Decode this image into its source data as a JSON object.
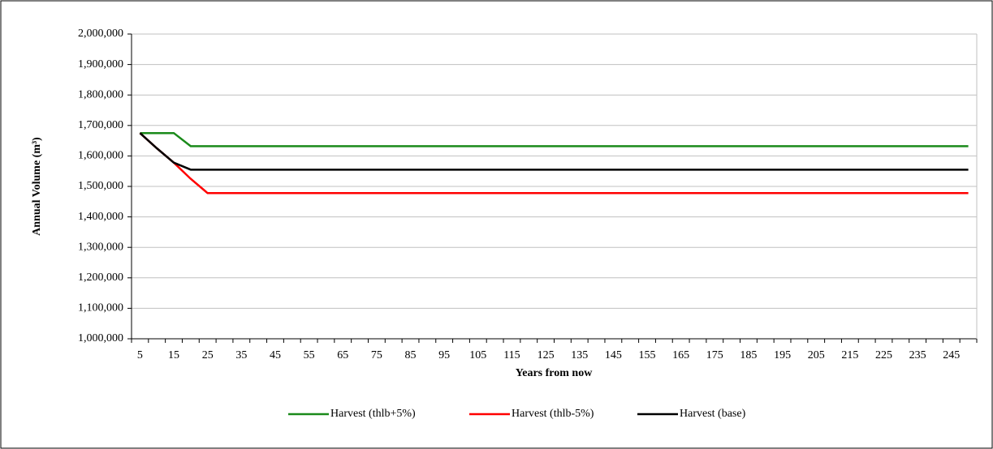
{
  "chart_data": {
    "type": "line",
    "x_label": "Years from now",
    "y_label": "Annual Volume (m³)",
    "categories": [
      5,
      null,
      15,
      null,
      25,
      null,
      35,
      null,
      45,
      null,
      55,
      null,
      65,
      null,
      75,
      null,
      85,
      null,
      95,
      null,
      105,
      null,
      115,
      null,
      125,
      null,
      135,
      null,
      145,
      null,
      155,
      null,
      165,
      null,
      175,
      null,
      185,
      null,
      195,
      null,
      205,
      null,
      215,
      null,
      225,
      null,
      235,
      null,
      245,
      null
    ],
    "ylim": [
      1000000,
      2000000
    ],
    "yticks": [
      {
        "value": 1000000,
        "label": "1,000,000"
      },
      {
        "value": 1100000,
        "label": "1,100,000"
      },
      {
        "value": 1200000,
        "label": "1,200,000"
      },
      {
        "value": 1300000,
        "label": "1,300,000"
      },
      {
        "value": 1400000,
        "label": "1,400,000"
      },
      {
        "value": 1500000,
        "label": "1,500,000"
      },
      {
        "value": 1600000,
        "label": "1,600,000"
      },
      {
        "value": 1700000,
        "label": "1,700,000"
      },
      {
        "value": 1800000,
        "label": "1,800,000"
      },
      {
        "value": 1900000,
        "label": "1,900,000"
      },
      {
        "value": 2000000,
        "label": "2,000,000"
      }
    ],
    "grid": true,
    "legend": "bottom",
    "series": [
      {
        "name": "Harvest (thlb+5%)",
        "color": "#1a8a1a",
        "values": [
          1675000,
          1675000,
          1675000,
          1632000,
          1632000,
          1632000,
          1632000,
          1632000,
          1632000,
          1632000,
          1632000,
          1632000,
          1632000,
          1632000,
          1632000,
          1632000,
          1632000,
          1632000,
          1632000,
          1632000,
          1632000,
          1632000,
          1632000,
          1632000,
          1632000,
          1632000,
          1632000,
          1632000,
          1632000,
          1632000,
          1632000,
          1632000,
          1632000,
          1632000,
          1632000,
          1632000,
          1632000,
          1632000,
          1632000,
          1632000,
          1632000,
          1632000,
          1632000,
          1632000,
          1632000,
          1632000,
          1632000,
          1632000,
          1632000,
          1632000
        ]
      },
      {
        "name": "Harvest (thlb-5%)",
        "color": "#ff0000",
        "values": [
          1675000,
          1625000,
          1578000,
          1525000,
          1478000,
          1478000,
          1478000,
          1478000,
          1478000,
          1478000,
          1478000,
          1478000,
          1478000,
          1478000,
          1478000,
          1478000,
          1478000,
          1478000,
          1478000,
          1478000,
          1478000,
          1478000,
          1478000,
          1478000,
          1478000,
          1478000,
          1478000,
          1478000,
          1478000,
          1478000,
          1478000,
          1478000,
          1478000,
          1478000,
          1478000,
          1478000,
          1478000,
          1478000,
          1478000,
          1478000,
          1478000,
          1478000,
          1478000,
          1478000,
          1478000,
          1478000,
          1478000,
          1478000,
          1478000,
          1478000
        ]
      },
      {
        "name": "Harvest (base)",
        "color": "#000000",
        "values": [
          1675000,
          1625000,
          1578000,
          1555000,
          1555000,
          1555000,
          1555000,
          1555000,
          1555000,
          1555000,
          1555000,
          1555000,
          1555000,
          1555000,
          1555000,
          1555000,
          1555000,
          1555000,
          1555000,
          1555000,
          1555000,
          1555000,
          1555000,
          1555000,
          1555000,
          1555000,
          1555000,
          1555000,
          1555000,
          1555000,
          1555000,
          1555000,
          1555000,
          1555000,
          1555000,
          1555000,
          1555000,
          1555000,
          1555000,
          1555000,
          1555000,
          1555000,
          1555000,
          1555000,
          1555000,
          1555000,
          1555000,
          1555000,
          1555000,
          1555000
        ]
      }
    ]
  }
}
